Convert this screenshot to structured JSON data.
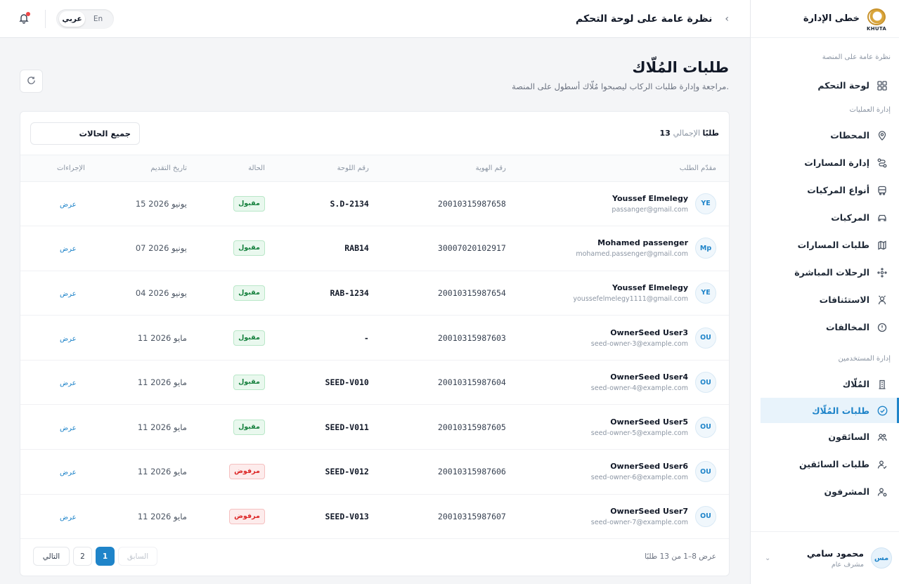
{
  "brand": {
    "title": "خطى الإدارة",
    "logo_text": "KHUTA"
  },
  "topbar": {
    "breadcrumb_title": "نظرة عامة على لوحة التحكم",
    "lang_en": "En",
    "lang_ar": "عربي"
  },
  "sidebar": {
    "sections": [
      {
        "label": "نظرة عامة على المنصة",
        "items": [
          {
            "label": "لوحة التحكم",
            "icon": "grid-icon"
          }
        ]
      },
      {
        "label": "إدارة العمليات",
        "items": [
          {
            "label": "المحطات",
            "icon": "location-pin-icon"
          },
          {
            "label": "إدارة المسارات",
            "icon": "route-icon"
          },
          {
            "label": "أنواع المركبات",
            "icon": "bus-icon"
          },
          {
            "label": "المركبات",
            "icon": "car-icon"
          },
          {
            "label": "طلبات المسارات",
            "icon": "map-icon"
          },
          {
            "label": "الرحلات المباشرة",
            "icon": "live-trips-icon"
          },
          {
            "label": "الاستئنافات",
            "icon": "appeals-icon"
          },
          {
            "label": "المخالفات",
            "icon": "alert-circle-icon"
          }
        ]
      },
      {
        "label": "إدارة المستخدمين",
        "items": [
          {
            "label": "المُلّاك",
            "icon": "building-icon"
          },
          {
            "label": "طلبات المُلّاك",
            "icon": "check-circle-icon",
            "active": true
          },
          {
            "label": "السائقون",
            "icon": "users-icon"
          },
          {
            "label": "طلبات السائقين",
            "icon": "user-check-icon"
          },
          {
            "label": "المشرفون",
            "icon": "user-shield-icon"
          }
        ]
      }
    ],
    "user": {
      "name": "محمود سامي",
      "role": "مشرف عام",
      "initials": "مس"
    }
  },
  "page": {
    "title": "طلبات المُلّاك",
    "subtitle": "مراجعة وإدارة طلبات الركاب ليصبحوا مُلّاك أسطول على المنصة.",
    "filter_value": "جميع الحالات",
    "total_label": "الإجمالي",
    "total_value": "13 طلبًا"
  },
  "table": {
    "headers": {
      "applicant": "مقدّم الطلب",
      "id": "رقم الهوية",
      "plate": "رقم اللوحة",
      "status": "الحالة",
      "date": "تاريخ التقديم",
      "actions": "الإجراءات"
    },
    "rows": [
      {
        "initials": "YE",
        "name": "Youssef Elmelegy",
        "email": "passanger@gmail.com",
        "id": "20010315987658",
        "plate": "S.D-2134",
        "status": "مقبول",
        "status_type": "accepted",
        "date": "15 يونيو 2026",
        "action": "عرض"
      },
      {
        "initials": "Mp",
        "name": "Mohamed passenger",
        "email": "mohamed.passenger@gmail.com",
        "id": "30007020102917",
        "plate": "RAB14",
        "status": "مقبول",
        "status_type": "accepted",
        "date": "07 يونيو 2026",
        "action": "عرض"
      },
      {
        "initials": "YE",
        "name": "Youssef Elmelegy",
        "email": "youssefelmelegy1111@gmail.com",
        "id": "20010315987654",
        "plate": "RAB-1234",
        "status": "مقبول",
        "status_type": "accepted",
        "date": "04 يونيو 2026",
        "action": "عرض"
      },
      {
        "initials": "OU",
        "name": "OwnerSeed User3",
        "email": "seed-owner-3@example.com",
        "id": "20010315987603",
        "plate": "-",
        "status": "مقبول",
        "status_type": "accepted",
        "date": "11 مايو 2026",
        "action": "عرض"
      },
      {
        "initials": "OU",
        "name": "OwnerSeed User4",
        "email": "seed-owner-4@example.com",
        "id": "20010315987604",
        "plate": "SEED-V010",
        "status": "مقبول",
        "status_type": "accepted",
        "date": "11 مايو 2026",
        "action": "عرض"
      },
      {
        "initials": "OU",
        "name": "OwnerSeed User5",
        "email": "seed-owner-5@example.com",
        "id": "20010315987605",
        "plate": "SEED-V011",
        "status": "مقبول",
        "status_type": "accepted",
        "date": "11 مايو 2026",
        "action": "عرض"
      },
      {
        "initials": "OU",
        "name": "OwnerSeed User6",
        "email": "seed-owner-6@example.com",
        "id": "20010315987606",
        "plate": "SEED-V012",
        "status": "مرفوض",
        "status_type": "rejected",
        "date": "11 مايو 2026",
        "action": "عرض"
      },
      {
        "initials": "OU",
        "name": "OwnerSeed User7",
        "email": "seed-owner-7@example.com",
        "id": "20010315987607",
        "plate": "SEED-V013",
        "status": "مرفوض",
        "status_type": "rejected",
        "date": "11 مايو 2026",
        "action": "عرض"
      }
    ]
  },
  "pagination": {
    "summary": "عرض 8–1 من 13 طلبًا",
    "prev": "السابق",
    "pages": [
      "1",
      "2"
    ],
    "current": "1",
    "next": "التالي"
  },
  "colors": {
    "accent": "#1f84c9",
    "accepted": "#15803d",
    "rejected": "#dc2626"
  }
}
